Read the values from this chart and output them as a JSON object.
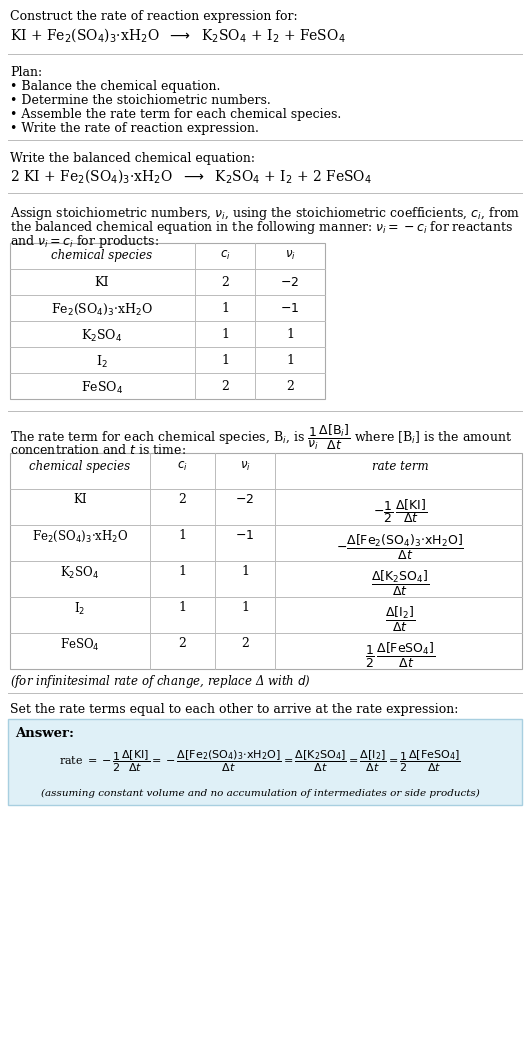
{
  "bg_color": "#ffffff",
  "text_color": "#000000",
  "title_line1": "Construct the rate of reaction expression for:",
  "plan_header": "Plan:",
  "plan_items": [
    "• Balance the chemical equation.",
    "• Determine the stoichiometric numbers.",
    "• Assemble the rate term for each chemical species.",
    "• Write the rate of reaction expression."
  ],
  "balanced_header": "Write the balanced chemical equation:",
  "stoich_intro_line1": "Assign stoichiometric numbers, $\\nu_i$, using the stoichiometric coefficients, $c_i$, from",
  "stoich_intro_line2": "the balanced chemical equation in the following manner: $\\nu_i = -c_i$ for reactants",
  "stoich_intro_line3": "and $\\nu_i = c_i$ for products:",
  "table1_col_headers": [
    "chemical species",
    "$c_i$",
    "$\\nu_i$"
  ],
  "table1_rows": [
    [
      "KI",
      "2",
      "$-2$"
    ],
    [
      "Fe$_2$(SO$_4$)$_3$·xH$_2$O",
      "1",
      "$-1$"
    ],
    [
      "K$_2$SO$_4$",
      "1",
      "1"
    ],
    [
      "I$_2$",
      "1",
      "1"
    ],
    [
      "FeSO$_4$",
      "2",
      "2"
    ]
  ],
  "rate_intro_line1": "The rate term for each chemical species, B$_i$, is $\\dfrac{1}{\\nu_i}\\dfrac{\\Delta[\\mathrm{B}_i]}{\\Delta t}$ where [B$_i$] is the amount",
  "rate_intro_line2": "concentration and $t$ is time:",
  "table2_col_headers": [
    "chemical species",
    "$c_i$",
    "$\\nu_i$",
    "rate term"
  ],
  "table2_rows": [
    [
      "KI",
      "2",
      "$-2$",
      "$-\\dfrac{1}{2}\\,\\dfrac{\\Delta[\\mathrm{KI}]}{\\Delta t}$"
    ],
    [
      "Fe$_2$(SO$_4$)$_3$·xH$_2$O",
      "1",
      "$-1$",
      "$-\\dfrac{\\Delta[\\mathrm{Fe_2(SO_4)_3{\\cdot}xH_2O}]}{\\Delta t}$"
    ],
    [
      "K$_2$SO$_4$",
      "1",
      "1",
      "$\\dfrac{\\Delta[\\mathrm{K_2SO_4}]}{\\Delta t}$"
    ],
    [
      "I$_2$",
      "1",
      "1",
      "$\\dfrac{\\Delta[\\mathrm{I_2}]}{\\Delta t}$"
    ],
    [
      "FeSO$_4$",
      "2",
      "2",
      "$\\dfrac{1}{2}\\,\\dfrac{\\Delta[\\mathrm{FeSO_4}]}{\\Delta t}$"
    ]
  ],
  "infinitesimal_note": "(for infinitesimal rate of change, replace Δ with $d$)",
  "set_equal_text": "Set the rate terms equal to each other to arrive at the rate expression:",
  "answer_label": "Answer:",
  "answer_box_color": "#dff0f7",
  "answer_box_border": "#a8cfe0",
  "answer_note": "(assuming constant volume and no accumulation of intermediates or side products)"
}
